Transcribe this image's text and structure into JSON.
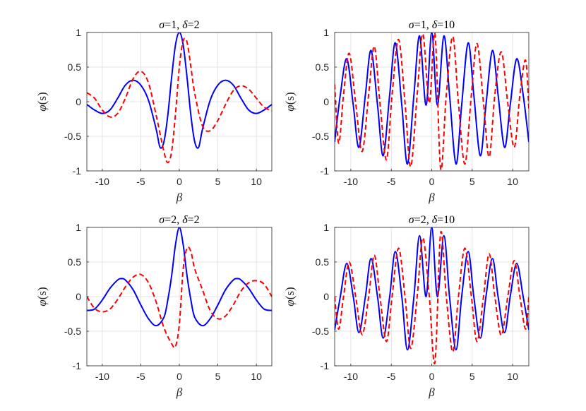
{
  "chart_data": [
    {
      "type": "line",
      "title_parts": [
        {
          "text": "σ",
          "italic": true
        },
        {
          "text": "=1, ",
          "italic": false
        },
        {
          "text": "δ",
          "italic": true
        },
        {
          "text": "=2",
          "italic": false
        }
      ],
      "xlabel": "β",
      "ylabel_parts": [
        {
          "text": "φ",
          "italic": true
        },
        {
          "text": "(s)",
          "italic": false
        }
      ],
      "xlim": [
        -12,
        12
      ],
      "ylim": [
        -1,
        1
      ],
      "xticks": [
        -10,
        -5,
        0,
        5,
        10
      ],
      "xtick_labels": [
        "-10",
        "-5",
        "0",
        "5",
        "10"
      ],
      "yticks": [
        -1,
        -0.5,
        0,
        0.5,
        1
      ],
      "ytick_labels": [
        "-1",
        "-0.5",
        "0",
        "0.5",
        "1"
      ],
      "grid": true,
      "series": [
        {
          "style": "solid",
          "color": "#0000ff",
          "x": [
            -12,
            -11,
            -10,
            -9,
            -8,
            -7,
            -6,
            -5,
            -4,
            -3,
            -2.5,
            -2,
            -1.5,
            -1,
            -0.5,
            0,
            0.5,
            1,
            1.5,
            2,
            2.5,
            3,
            4,
            5,
            6,
            7,
            8,
            9,
            10,
            11,
            12
          ],
          "y": [
            -0.04,
            -0.12,
            -0.17,
            -0.12,
            0.05,
            0.24,
            0.31,
            0.24,
            0.02,
            -0.4,
            -0.66,
            -0.58,
            -0.2,
            0.35,
            0.82,
            1.0,
            0.82,
            0.35,
            -0.2,
            -0.58,
            -0.66,
            -0.4,
            0.02,
            0.24,
            0.31,
            0.24,
            0.05,
            -0.12,
            -0.17,
            -0.12,
            -0.04
          ]
        },
        {
          "style": "dashed",
          "color": "#ff0000",
          "x": [
            -12,
            -11,
            -10,
            -9,
            -8,
            -7,
            -6,
            -5,
            -4,
            -3,
            -2,
            -1.5,
            -1,
            -0.5,
            0,
            0.5,
            1,
            1.5,
            2,
            3,
            4,
            5,
            6,
            7,
            8,
            9,
            10,
            11,
            12
          ],
          "y": [
            0.13,
            0.05,
            -0.12,
            -0.22,
            -0.17,
            0.05,
            0.33,
            0.44,
            0.27,
            -0.2,
            -0.72,
            -0.88,
            -0.72,
            -0.18,
            0.5,
            0.88,
            0.86,
            0.5,
            0.12,
            -0.35,
            -0.42,
            -0.27,
            -0.04,
            0.16,
            0.23,
            0.18,
            0.05,
            -0.08,
            -0.13
          ]
        }
      ]
    },
    {
      "type": "line",
      "title_parts": [
        {
          "text": "σ",
          "italic": true
        },
        {
          "text": "=1, ",
          "italic": false
        },
        {
          "text": "δ",
          "italic": true
        },
        {
          "text": "=10",
          "italic": false
        }
      ],
      "xlabel": "β",
      "ylabel_parts": [
        {
          "text": "φ",
          "italic": true
        },
        {
          "text": "(s)",
          "italic": false
        }
      ],
      "xlim": [
        -12,
        12
      ],
      "ylim": [
        -1,
        1
      ],
      "xticks": [
        -10,
        -5,
        0,
        5,
        10
      ],
      "xtick_labels": [
        "-10",
        "-5",
        "0",
        "5",
        "10"
      ],
      "yticks": [
        -1,
        -0.5,
        0,
        0.5,
        1
      ],
      "ytick_labels": [
        "-1",
        "-0.5",
        "0",
        "0.5",
        "1"
      ],
      "grid": true,
      "series": [
        {
          "style": "solid",
          "color": "#0000ff",
          "x": [
            -12,
            -11.3,
            -10.5,
            -9.7,
            -9.0,
            -8.2,
            -7.5,
            -6.7,
            -6.0,
            -5.2,
            -4.5,
            -3.7,
            -3.0,
            -2.2,
            -1.5,
            -0.7,
            0,
            0.7,
            1.5,
            2.2,
            3.0,
            3.7,
            4.5,
            5.2,
            6.0,
            6.7,
            7.5,
            8.2,
            9.0,
            9.7,
            10.5,
            11.3,
            12
          ],
          "y": [
            -0.58,
            0.1,
            0.62,
            -0.05,
            -0.66,
            0.1,
            0.74,
            -0.05,
            -0.78,
            0.1,
            0.85,
            -0.05,
            -0.9,
            0.1,
            0.95,
            -0.05,
            1.0,
            -0.05,
            0.95,
            0.1,
            -0.9,
            -0.05,
            0.85,
            0.1,
            -0.78,
            -0.05,
            0.74,
            0.1,
            -0.66,
            -0.05,
            0.62,
            0.1,
            -0.58
          ]
        },
        {
          "style": "dashed",
          "color": "#ff0000",
          "x": [
            -12,
            -11.5,
            -10.9,
            -10.2,
            -9.4,
            -8.6,
            -7.8,
            -7.1,
            -6.4,
            -5.6,
            -4.9,
            -4.1,
            -3.3,
            -2.6,
            -1.8,
            -1.1,
            -0.3,
            0.4,
            1.1,
            1.8,
            2.6,
            3.3,
            4.1,
            4.9,
            5.6,
            6.4,
            7.1,
            7.8,
            8.6,
            9.4,
            10.2,
            10.9,
            11.6,
            12
          ],
          "y": [
            0.25,
            -0.6,
            0.1,
            0.7,
            -0.02,
            -0.72,
            0.1,
            0.8,
            -0.02,
            -0.84,
            0.1,
            0.9,
            -0.02,
            -0.94,
            0.1,
            0.98,
            -0.02,
            0.98,
            -0.97,
            0.1,
            0.94,
            -0.02,
            -0.9,
            0.1,
            0.84,
            -0.02,
            -0.8,
            0.1,
            0.72,
            -0.02,
            -0.66,
            0.1,
            0.6,
            -0.1
          ]
        }
      ]
    },
    {
      "type": "line",
      "title_parts": [
        {
          "text": "σ",
          "italic": true
        },
        {
          "text": "=2, ",
          "italic": false
        },
        {
          "text": "δ",
          "italic": true
        },
        {
          "text": "=2",
          "italic": false
        }
      ],
      "xlabel": "β",
      "ylabel_parts": [
        {
          "text": "φ",
          "italic": true
        },
        {
          "text": "(s)",
          "italic": false
        }
      ],
      "xlim": [
        -12,
        12
      ],
      "ylim": [
        -1,
        1
      ],
      "xticks": [
        -10,
        -5,
        0,
        5,
        10
      ],
      "xtick_labels": [
        "-10",
        "-5",
        "0",
        "5",
        "10"
      ],
      "yticks": [
        -1,
        -0.5,
        0,
        0.5,
        1
      ],
      "ytick_labels": [
        "-1",
        "-0.5",
        "0",
        "0.5",
        "1"
      ],
      "grid": true,
      "series": [
        {
          "style": "solid",
          "color": "#0000ff",
          "x": [
            -12,
            -11,
            -10,
            -9,
            -8,
            -7.5,
            -7,
            -6,
            -5,
            -4,
            -3,
            -2,
            -1.5,
            -1,
            -0.5,
            0,
            0.5,
            1,
            1.5,
            2,
            3,
            4,
            5,
            6,
            7,
            7.5,
            8,
            9,
            10,
            11,
            12
          ],
          "y": [
            -0.2,
            -0.18,
            -0.05,
            0.12,
            0.24,
            0.26,
            0.24,
            0.1,
            -0.12,
            -0.32,
            -0.42,
            -0.3,
            -0.05,
            0.3,
            0.75,
            1.0,
            0.75,
            0.3,
            -0.05,
            -0.3,
            -0.42,
            -0.32,
            -0.12,
            0.1,
            0.24,
            0.26,
            0.24,
            0.12,
            -0.05,
            -0.18,
            -0.2
          ]
        },
        {
          "style": "dashed",
          "color": "#ff0000",
          "x": [
            -12,
            -11,
            -10,
            -9,
            -8,
            -7,
            -6,
            -5,
            -4,
            -3,
            -2,
            -1,
            -0.5,
            0,
            0.5,
            1,
            1.5,
            2,
            3,
            4,
            5,
            6,
            7,
            8,
            9,
            10,
            11,
            12
          ],
          "y": [
            0.0,
            -0.17,
            -0.22,
            -0.18,
            -0.04,
            0.14,
            0.28,
            0.32,
            0.2,
            -0.08,
            -0.45,
            -0.68,
            -0.72,
            -0.4,
            0.4,
            0.7,
            0.65,
            0.4,
            0.1,
            -0.2,
            -0.32,
            -0.28,
            -0.12,
            0.08,
            0.2,
            0.23,
            0.18,
            0.0
          ]
        }
      ]
    },
    {
      "type": "line",
      "title_parts": [
        {
          "text": "σ",
          "italic": true
        },
        {
          "text": "=2, ",
          "italic": false
        },
        {
          "text": "δ",
          "italic": true
        },
        {
          "text": "=10",
          "italic": false
        }
      ],
      "xlabel": "β",
      "ylabel_parts": [
        {
          "text": "φ",
          "italic": true
        },
        {
          "text": "(s)",
          "italic": false
        }
      ],
      "xlim": [
        -12,
        12
      ],
      "ylim": [
        -1,
        1
      ],
      "xticks": [
        -10,
        -5,
        0,
        5,
        10
      ],
      "xtick_labels": [
        "-10",
        "-5",
        "0",
        "5",
        "10"
      ],
      "yticks": [
        -1,
        -0.5,
        0,
        0.5,
        1
      ],
      "ytick_labels": [
        "-1",
        "-0.5",
        "0",
        "0.5",
        "1"
      ],
      "grid": true,
      "series": [
        {
          "style": "solid",
          "color": "#0000ff",
          "x": [
            -12,
            -11.3,
            -10.5,
            -9.7,
            -9.0,
            -8.2,
            -7.5,
            -6.7,
            -6.0,
            -5.2,
            -4.5,
            -3.7,
            -3.0,
            -2.2,
            -1.5,
            -0.7,
            0,
            0.7,
            1.5,
            2.2,
            3.0,
            3.7,
            4.5,
            5.2,
            6.0,
            6.7,
            7.5,
            8.2,
            9.0,
            9.7,
            10.5,
            11.3,
            12
          ],
          "y": [
            -0.48,
            0.0,
            0.48,
            0.0,
            -0.52,
            0.0,
            0.55,
            0.0,
            -0.6,
            0.0,
            0.65,
            0.0,
            -0.77,
            0.0,
            0.88,
            0.0,
            1.0,
            0.0,
            0.88,
            0.0,
            -0.77,
            0.0,
            0.65,
            0.0,
            -0.6,
            0.0,
            0.55,
            0.0,
            -0.52,
            0.0,
            0.48,
            0.0,
            -0.48
          ]
        },
        {
          "style": "dashed",
          "color": "#ff0000",
          "x": [
            -12,
            -11.5,
            -10.9,
            -10.2,
            -9.4,
            -8.6,
            -7.8,
            -7.1,
            -6.4,
            -5.6,
            -4.9,
            -4.1,
            -3.3,
            -2.6,
            -1.8,
            -1.1,
            -0.3,
            0.4,
            1.1,
            1.8,
            2.6,
            3.3,
            4.1,
            4.9,
            5.6,
            6.4,
            7.1,
            7.8,
            8.6,
            9.4,
            10.2,
            10.9,
            11.6,
            12
          ],
          "y": [
            0.0,
            -0.47,
            0.0,
            0.5,
            0.0,
            -0.55,
            0.0,
            0.6,
            0.0,
            -0.65,
            0.0,
            0.7,
            0.0,
            -0.75,
            0.0,
            0.85,
            0.0,
            -0.95,
            0.92,
            0.0,
            -0.8,
            0.0,
            0.7,
            0.0,
            -0.65,
            0.0,
            0.62,
            0.0,
            -0.56,
            0.0,
            0.52,
            0.0,
            -0.47,
            0.0
          ]
        }
      ]
    }
  ]
}
